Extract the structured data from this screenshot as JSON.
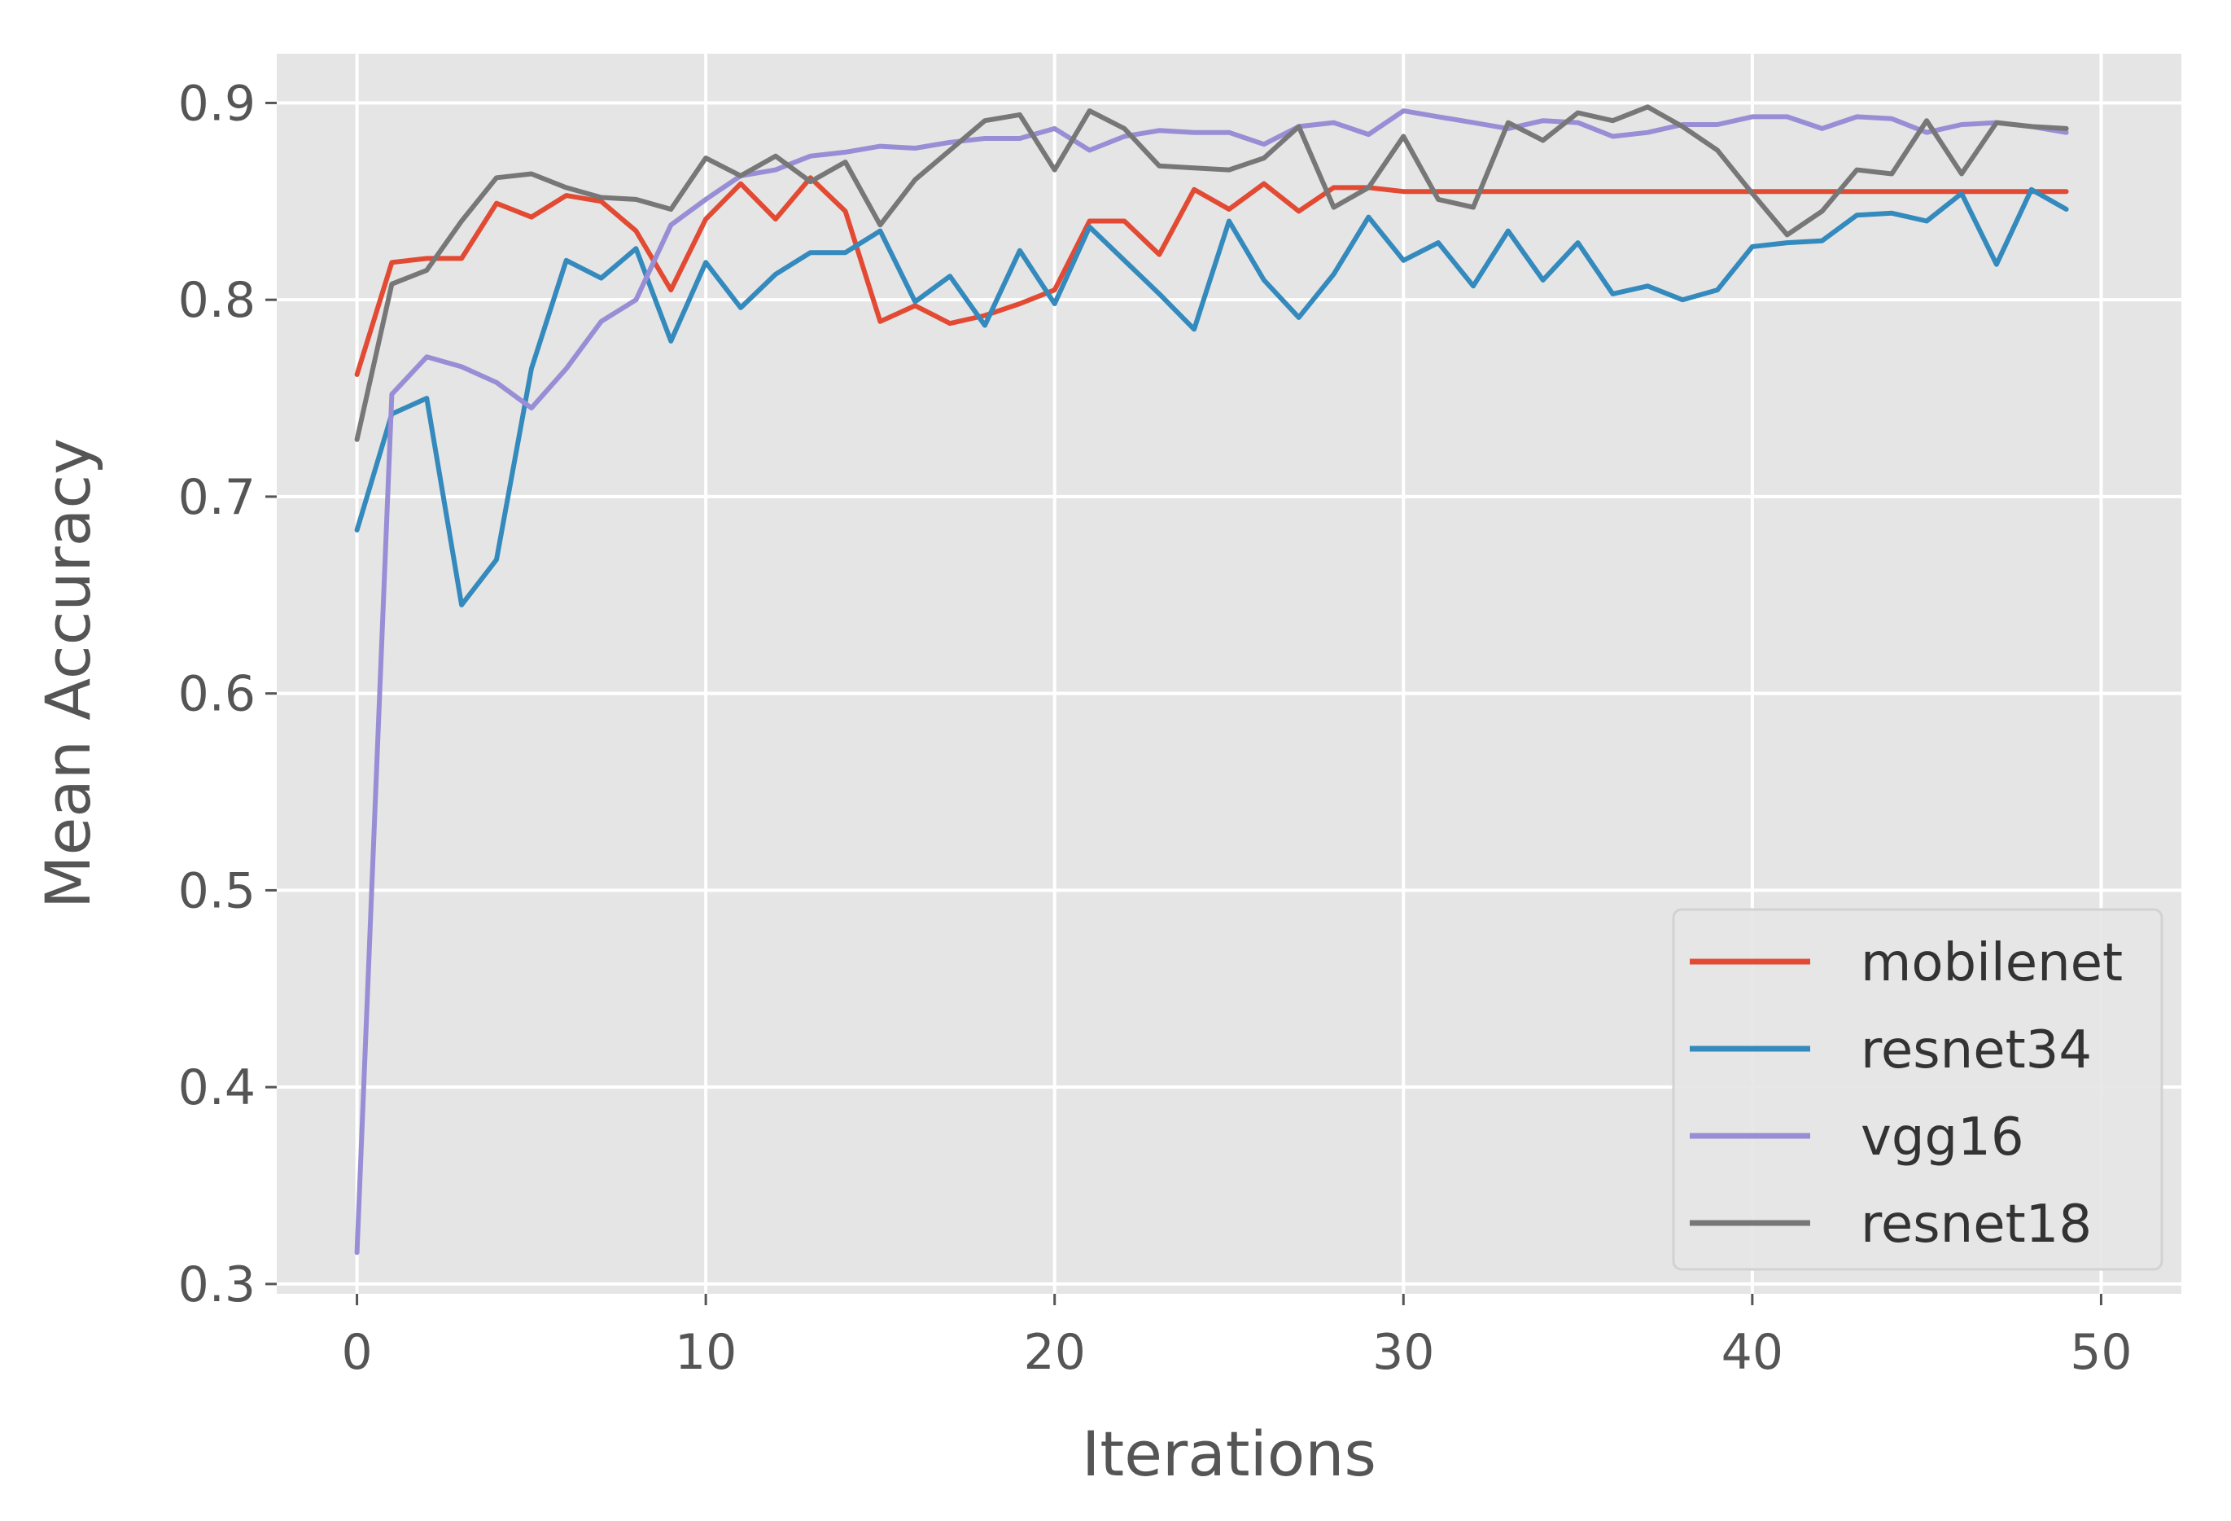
{
  "chart_data": {
    "type": "line",
    "xlabel": "Iterations",
    "ylabel": "Mean Accuracy",
    "xlim": [
      -2.3,
      52.3
    ],
    "ylim": [
      0.295,
      0.925
    ],
    "xticks": [
      0,
      10,
      20,
      30,
      40,
      50
    ],
    "yticks": [
      0.3,
      0.4,
      0.5,
      0.6,
      0.7,
      0.8,
      0.9
    ],
    "xtick_labels": [
      "0",
      "10",
      "20",
      "30",
      "40",
      "50"
    ],
    "ytick_labels": [
      "0.3",
      "0.4",
      "0.5",
      "0.6",
      "0.7",
      "0.8",
      "0.9"
    ],
    "grid": true,
    "legend_position": "lower-right",
    "x": [
      0,
      1,
      2,
      3,
      4,
      5,
      6,
      7,
      8,
      9,
      10,
      11,
      12,
      13,
      14,
      15,
      16,
      17,
      18,
      19,
      20,
      21,
      22,
      23,
      24,
      25,
      26,
      27,
      28,
      29,
      30,
      31,
      32,
      33,
      34,
      35,
      36,
      37,
      38,
      39,
      40,
      41,
      42,
      43,
      44,
      45,
      46,
      47,
      48,
      49
    ],
    "series": [
      {
        "name": "mobilenet",
        "color": "#E24A33",
        "values": [
          0.762,
          0.819,
          0.821,
          0.821,
          0.849,
          0.842,
          0.853,
          0.85,
          0.835,
          0.805,
          0.841,
          0.859,
          0.841,
          0.862,
          0.845,
          0.789,
          0.797,
          0.788,
          0.792,
          0.798,
          0.805,
          0.84,
          0.84,
          0.823,
          0.856,
          0.846,
          0.859,
          0.845,
          0.857,
          0.857,
          0.855,
          0.855,
          0.855,
          0.855,
          0.855,
          0.855,
          0.855,
          0.855,
          0.855,
          0.855,
          0.855,
          0.855,
          0.855,
          0.855,
          0.855,
          0.855,
          0.855,
          0.855,
          0.855,
          0.855
        ]
      },
      {
        "name": "resnet34",
        "color": "#348ABD",
        "values": [
          0.683,
          0.742,
          0.75,
          0.645,
          0.668,
          0.765,
          0.82,
          0.811,
          0.826,
          0.779,
          0.819,
          0.796,
          0.813,
          0.824,
          0.824,
          0.835,
          0.799,
          0.812,
          0.787,
          0.825,
          0.798,
          0.837,
          0.82,
          0.803,
          0.785,
          0.84,
          0.81,
          0.791,
          0.813,
          0.842,
          0.82,
          0.829,
          0.807,
          0.835,
          0.81,
          0.829,
          0.803,
          0.807,
          0.8,
          0.805,
          0.827,
          0.829,
          0.83,
          0.843,
          0.844,
          0.84,
          0.854,
          0.818,
          0.856,
          0.846
        ]
      },
      {
        "name": "vgg16",
        "color": "#988ED5",
        "values": [
          0.316,
          0.752,
          0.771,
          0.766,
          0.758,
          0.745,
          0.765,
          0.789,
          0.8,
          0.838,
          0.851,
          0.863,
          0.866,
          0.873,
          0.875,
          0.878,
          0.877,
          0.88,
          0.882,
          0.882,
          0.887,
          0.876,
          0.883,
          0.886,
          0.885,
          0.885,
          0.879,
          0.888,
          0.89,
          0.884,
          0.896,
          0.893,
          0.89,
          0.887,
          0.891,
          0.89,
          0.883,
          0.885,
          0.889,
          0.889,
          0.893,
          0.893,
          0.887,
          0.893,
          0.892,
          0.885,
          0.889,
          0.89,
          0.888,
          0.885
        ]
      },
      {
        "name": "resnet18",
        "color": "#777777",
        "values": [
          0.729,
          0.808,
          0.815,
          0.84,
          0.862,
          0.864,
          0.857,
          0.852,
          0.851,
          0.846,
          0.872,
          0.863,
          0.873,
          0.86,
          0.87,
          0.838,
          0.861,
          0.876,
          0.891,
          0.894,
          0.866,
          0.896,
          0.887,
          0.868,
          0.867,
          0.866,
          0.872,
          0.888,
          0.847,
          0.857,
          0.883,
          0.851,
          0.847,
          0.89,
          0.881,
          0.895,
          0.891,
          0.898,
          0.888,
          0.876,
          0.854,
          0.833,
          0.845,
          0.866,
          0.864,
          0.891,
          0.864,
          0.89,
          0.888,
          0.887
        ]
      }
    ]
  }
}
